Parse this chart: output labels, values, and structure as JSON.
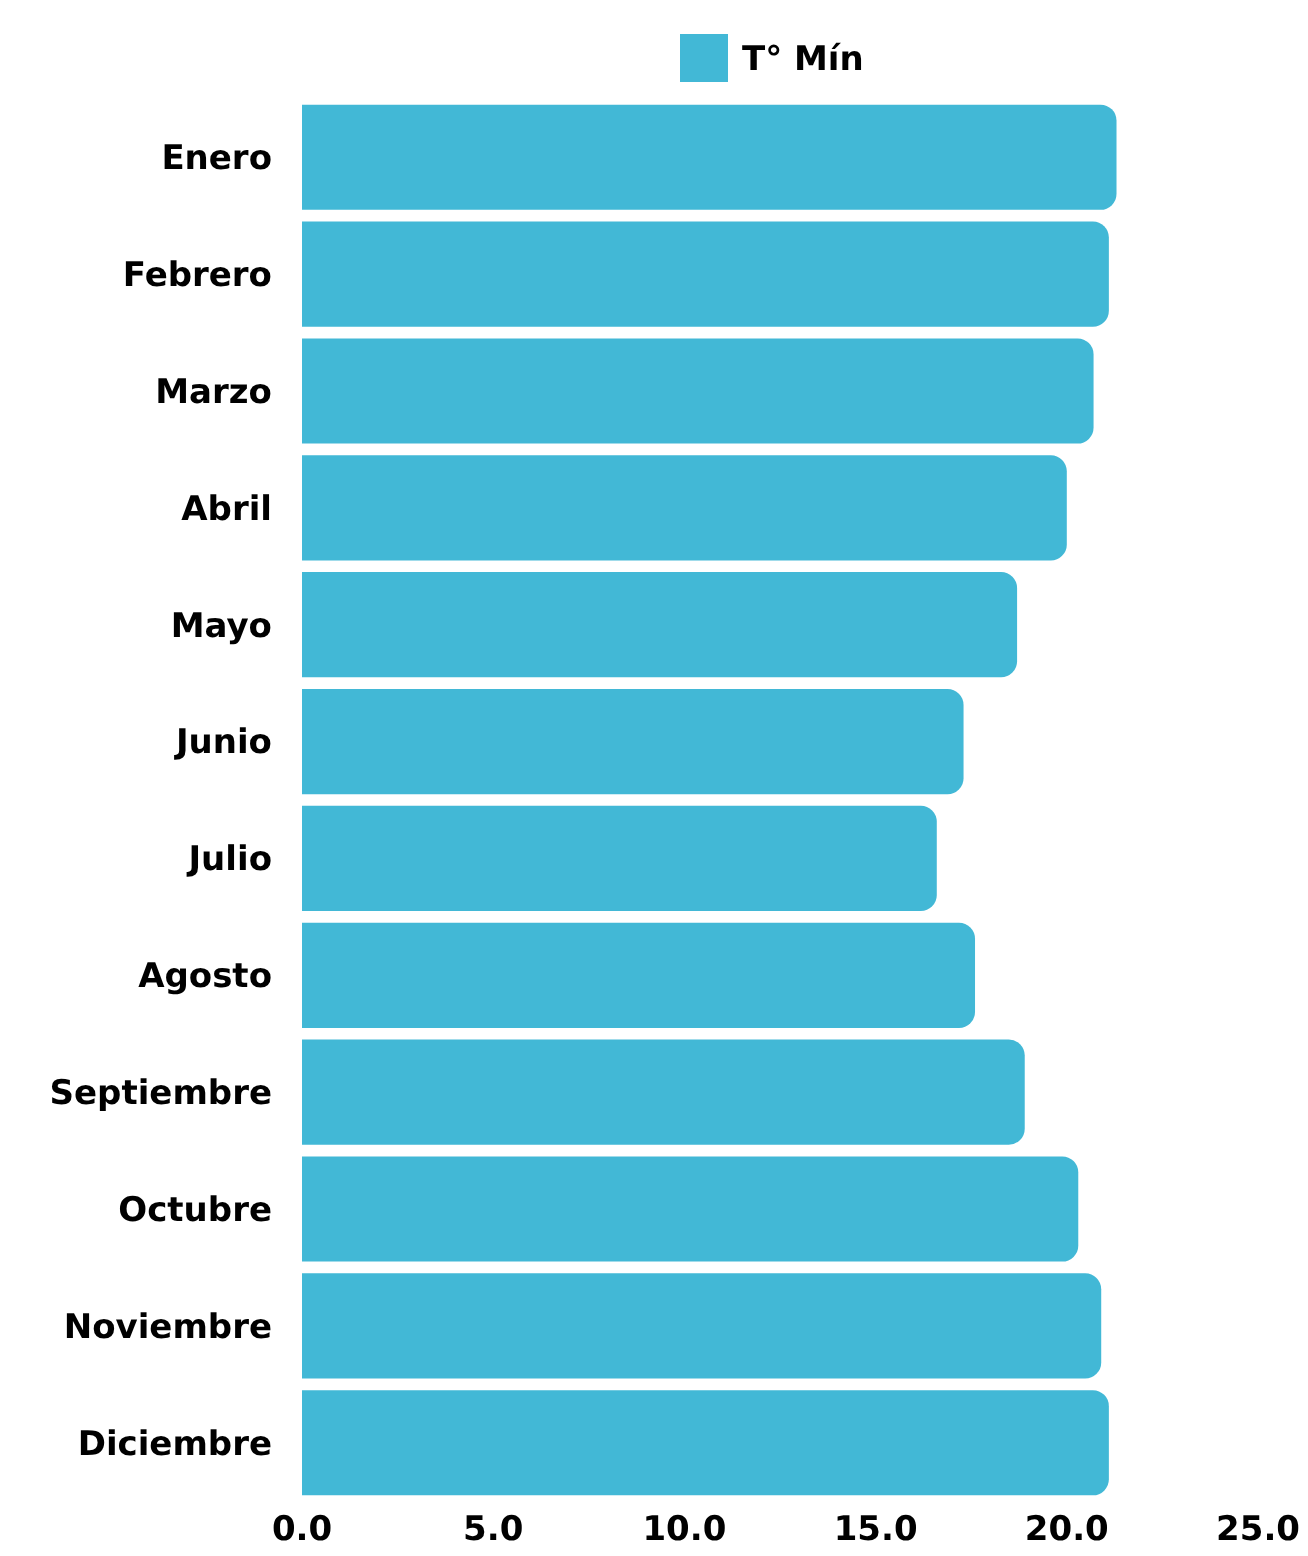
{
  "chart_data": {
    "type": "bar",
    "orientation": "horizontal",
    "categories": [
      "Enero",
      "Febrero",
      "Marzo",
      "Abril",
      "Mayo",
      "Junio",
      "Julio",
      "Agosto",
      "Septiembre",
      "Octubre",
      "Noviembre",
      "Diciembre"
    ],
    "series": [
      {
        "name": "T° Mín",
        "color": "#42b8d6",
        "values": [
          21.3,
          21.1,
          20.7,
          20.0,
          18.7,
          17.3,
          16.6,
          17.6,
          18.9,
          20.3,
          20.9,
          21.1
        ]
      }
    ],
    "xlim": [
      0,
      25
    ],
    "xticks": [
      {
        "value": 0,
        "label": "0.0"
      },
      {
        "value": 5,
        "label": "5.0"
      },
      {
        "value": 10,
        "label": "10.0"
      },
      {
        "value": 15,
        "label": "15.0"
      },
      {
        "value": 20,
        "label": "20.0"
      },
      {
        "value": 25,
        "label": "25.0"
      }
    ],
    "grid": false,
    "legend": "top"
  }
}
